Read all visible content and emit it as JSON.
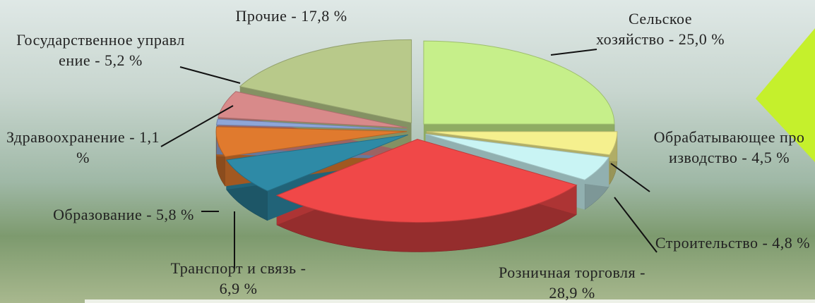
{
  "chart_data": {
    "type": "pie",
    "categories": [
      "Сельское хозяйство",
      "Обрабатывающее производство",
      "Строительство",
      "Розничная торговля",
      "Транспорт и связь",
      "Образование",
      "Здравоохранение",
      "Государственное управление",
      "Прочие"
    ],
    "values": [
      25.0,
      4.5,
      4.8,
      28.9,
      6.9,
      5.8,
      1.1,
      5.2,
      17.8
    ],
    "value_labels": [
      "25,0 %",
      "4,5 %",
      "4,8 %",
      "28,9 %",
      "6,9 %",
      "5,8 %",
      "1,1 %",
      "5,2 %",
      "17,8 %"
    ],
    "label_separator": " - ",
    "colors": [
      "#c6ef8a",
      "#f5f08e",
      "#c9f4f4",
      "#f04848",
      "#2e8aa6",
      "#e07a2e",
      "#8ea6d8",
      "#d88a8a",
      "#b8c98a"
    ]
  }
}
